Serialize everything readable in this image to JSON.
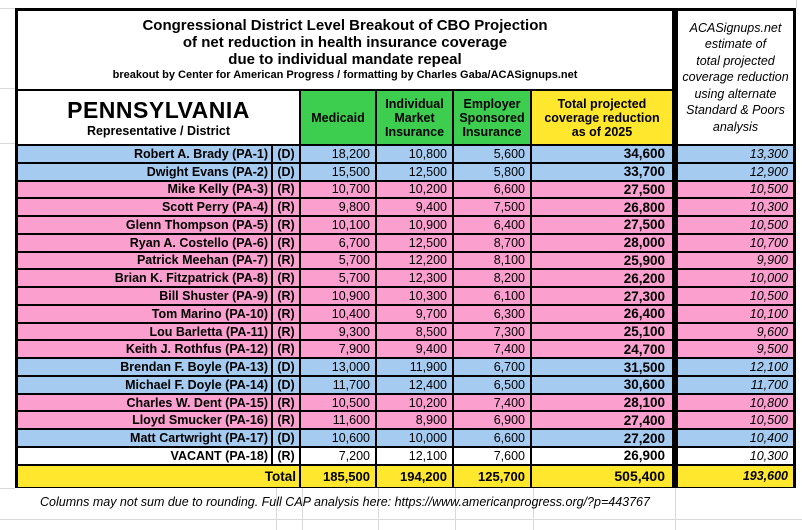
{
  "title": {
    "line1": "Congressional District Level Breakout of CBO Projection",
    "line2": "of net reduction in health insurance coverage",
    "line3": "due to individual mandate repeal",
    "credit": "breakout by Center for American Progress / formatting by Charles Gaba/ACASignups.net"
  },
  "right_header": "ACASignups.net\nestimate of\ntotal projected\ncoverage reduction\nusing alternate\nStandard & Poors\nanalysis",
  "table": {
    "state": "PENNSYLVANIA",
    "state_subtitle": "Representative / District",
    "col_medicaid": "Medicaid",
    "col_individual": "Individual\nMarket\nInsurance",
    "col_employer": "Employer\nSponsored\nInsurance",
    "col_total": "Total projected\ncoverage reduction\nas of 2025",
    "rows": [
      {
        "name": "Robert A. Brady (PA-1)",
        "party": "(D)",
        "medicaid": "18,200",
        "individual": "10,800",
        "employer": "5,600",
        "total": "34,600",
        "sp": "13,300",
        "color": "dem"
      },
      {
        "name": "Dwight Evans (PA-2)",
        "party": "(D)",
        "medicaid": "15,500",
        "individual": "12,500",
        "employer": "5,800",
        "total": "33,700",
        "sp": "12,900",
        "color": "dem"
      },
      {
        "name": "Mike Kelly (PA-3)",
        "party": "(R)",
        "medicaid": "10,700",
        "individual": "10,200",
        "employer": "6,600",
        "total": "27,500",
        "sp": "10,500",
        "color": "rep"
      },
      {
        "name": "Scott Perry (PA-4)",
        "party": "(R)",
        "medicaid": "9,800",
        "individual": "9,400",
        "employer": "7,500",
        "total": "26,800",
        "sp": "10,300",
        "color": "rep"
      },
      {
        "name": "Glenn Thompson (PA-5)",
        "party": "(R)",
        "medicaid": "10,100",
        "individual": "10,900",
        "employer": "6,400",
        "total": "27,500",
        "sp": "10,500",
        "color": "rep"
      },
      {
        "name": "Ryan A. Costello (PA-6)",
        "party": "(R)",
        "medicaid": "6,700",
        "individual": "12,500",
        "employer": "8,700",
        "total": "28,000",
        "sp": "10,700",
        "color": "rep"
      },
      {
        "name": "Patrick Meehan (PA-7)",
        "party": "(R)",
        "medicaid": "5,700",
        "individual": "12,200",
        "employer": "8,100",
        "total": "25,900",
        "sp": "9,900",
        "color": "rep"
      },
      {
        "name": "Brian K. Fitzpatrick (PA-8)",
        "party": "(R)",
        "medicaid": "5,700",
        "individual": "12,300",
        "employer": "8,200",
        "total": "26,200",
        "sp": "10,000",
        "color": "rep"
      },
      {
        "name": "Bill Shuster (PA-9)",
        "party": "(R)",
        "medicaid": "10,900",
        "individual": "10,300",
        "employer": "6,100",
        "total": "27,300",
        "sp": "10,500",
        "color": "rep"
      },
      {
        "name": "Tom Marino (PA-10)",
        "party": "(R)",
        "medicaid": "10,400",
        "individual": "9,700",
        "employer": "6,300",
        "total": "26,400",
        "sp": "10,100",
        "color": "rep"
      },
      {
        "name": "Lou Barletta (PA-11)",
        "party": "(R)",
        "medicaid": "9,300",
        "individual": "8,500",
        "employer": "7,300",
        "total": "25,100",
        "sp": "9,600",
        "color": "rep"
      },
      {
        "name": "Keith J. Rothfus (PA-12)",
        "party": "(R)",
        "medicaid": "7,900",
        "individual": "9,400",
        "employer": "7,400",
        "total": "24,700",
        "sp": "9,500",
        "color": "rep"
      },
      {
        "name": "Brendan F. Boyle (PA-13)",
        "party": "(D)",
        "medicaid": "13,000",
        "individual": "11,900",
        "employer": "6,700",
        "total": "31,500",
        "sp": "12,100",
        "color": "dem"
      },
      {
        "name": "Michael F. Doyle (PA-14)",
        "party": "(D)",
        "medicaid": "11,700",
        "individual": "12,400",
        "employer": "6,500",
        "total": "30,600",
        "sp": "11,700",
        "color": "dem"
      },
      {
        "name": "Charles W. Dent (PA-15)",
        "party": "(R)",
        "medicaid": "10,500",
        "individual": "10,200",
        "employer": "7,400",
        "total": "28,100",
        "sp": "10,800",
        "color": "rep"
      },
      {
        "name": "Lloyd Smucker (PA-16)",
        "party": "(R)",
        "medicaid": "11,600",
        "individual": "8,900",
        "employer": "6,900",
        "total": "27,400",
        "sp": "10,500",
        "color": "rep"
      },
      {
        "name": "Matt Cartwright (PA-17)",
        "party": "(D)",
        "medicaid": "10,600",
        "individual": "10,000",
        "employer": "6,600",
        "total": "27,200",
        "sp": "10,400",
        "color": "dem"
      },
      {
        "name": "VACANT (PA-18)",
        "party": "(R)",
        "medicaid": "7,200",
        "individual": "12,100",
        "employer": "7,600",
        "total": "26,900",
        "sp": "10,300",
        "color": "vacant"
      }
    ],
    "total": {
      "label": "Total",
      "medicaid": "185,500",
      "individual": "194,200",
      "employer": "125,700",
      "total": "505,400",
      "sp": "193,600"
    }
  },
  "footer": "Columns may not sum due to rounding. Full CAP analysis here: https://www.americanprogress.org/?p=443767",
  "colors": {
    "dem": "#A5CBF1",
    "rep": "#FA9FCE",
    "vacant": "#FFFFFF",
    "green": "#3DCE50",
    "yellow": "#FFE72E"
  }
}
